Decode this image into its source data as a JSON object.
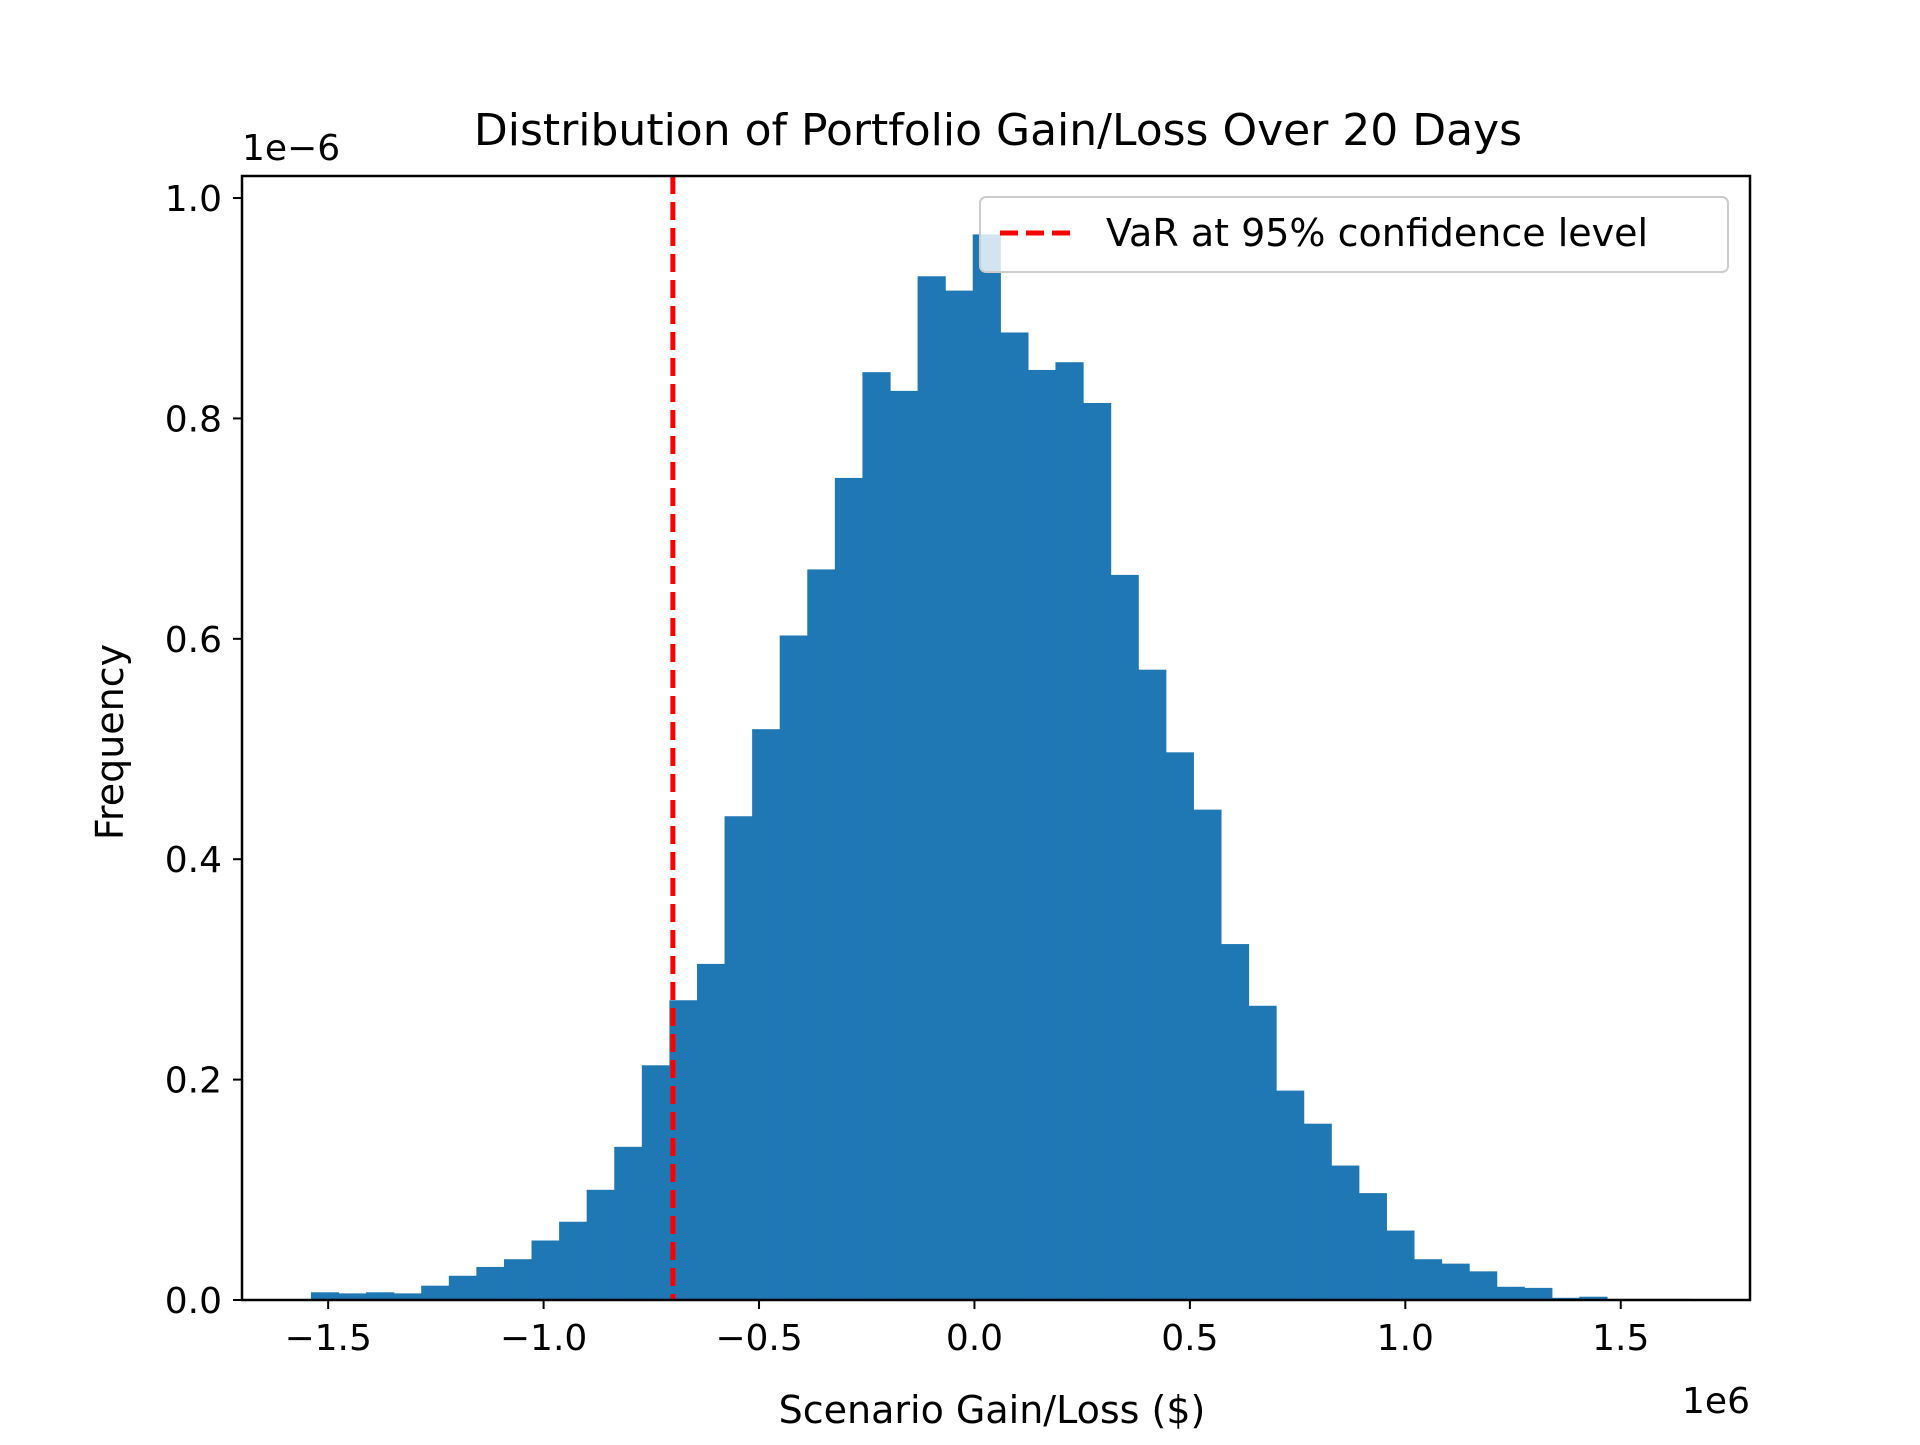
{
  "chart_data": {
    "type": "bar",
    "title": "Distribution of Portfolio Gain/Loss Over 20 Days",
    "xlabel": "Scenario Gain/Loss ($)",
    "ylabel": "Frequency",
    "x_offset_label": "1e6",
    "y_offset_label": "1e−6",
    "xlim": [
      -1.7,
      1.8
    ],
    "ylim": [
      0,
      1.02
    ],
    "x_ticks": [
      {
        "value": -1.5,
        "label": "−1.5"
      },
      {
        "value": -1.0,
        "label": "−1.0"
      },
      {
        "value": -0.5,
        "label": "−0.5"
      },
      {
        "value": 0.0,
        "label": "0.0"
      },
      {
        "value": 0.5,
        "label": "0.5"
      },
      {
        "value": 1.0,
        "label": "1.0"
      },
      {
        "value": 1.5,
        "label": "1.5"
      }
    ],
    "y_ticks": [
      {
        "value": 0.0,
        "label": "0.0"
      },
      {
        "value": 0.2,
        "label": "0.2"
      },
      {
        "value": 0.4,
        "label": "0.4"
      },
      {
        "value": 0.6,
        "label": "0.6"
      },
      {
        "value": 0.8,
        "label": "0.8"
      },
      {
        "value": 1.0,
        "label": "1.0"
      }
    ],
    "grid": false,
    "bar_color": "#1f77b4",
    "bin_start": -1.54,
    "bin_width": 0.064,
    "values": [
      0.007,
      0.006,
      0.007,
      0.006,
      0.013,
      0.022,
      0.03,
      0.037,
      0.054,
      0.071,
      0.1,
      0.139,
      0.213,
      0.272,
      0.305,
      0.439,
      0.518,
      0.603,
      0.663,
      0.746,
      0.842,
      0.825,
      0.929,
      0.916,
      0.967,
      0.878,
      0.844,
      0.851,
      0.814,
      0.658,
      0.572,
      0.497,
      0.445,
      0.323,
      0.267,
      0.19,
      0.16,
      0.122,
      0.097,
      0.063,
      0.037,
      0.033,
      0.026,
      0.012,
      0.011,
      0.002,
      0.003,
      0.001,
      0.001,
      0.001
    ],
    "var_line": {
      "x": -0.7,
      "label": "VaR at 95% confidence level",
      "color": "#ff0000",
      "style": "dashed"
    },
    "legend": {
      "position": "top-right",
      "entries": [
        "VaR at 95% confidence level"
      ]
    }
  }
}
